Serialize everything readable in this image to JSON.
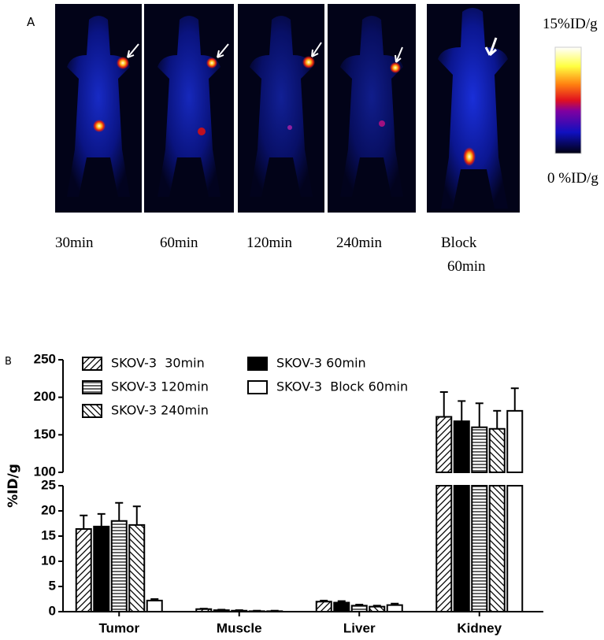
{
  "panel_a": {
    "panel_label": "A",
    "time_labels": [
      "30min",
      "60min",
      "120min",
      "240min"
    ],
    "block_label": [
      "Block",
      "60min"
    ],
    "colorbar": {
      "max_label": "15%ID/g",
      "min_label": "0 %ID/g"
    }
  },
  "chart_data": {
    "type": "bar",
    "panel_label": "B",
    "ylabel": "%ID/g",
    "categories": [
      "Tumor",
      "Muscle",
      "Liver",
      "Kidney"
    ],
    "series": [
      {
        "name": "SKOV-3  30min",
        "pattern": "diagonal-up",
        "color": "#000000",
        "values": [
          16.4,
          0.5,
          2.0,
          174
        ],
        "errors": [
          2.7,
          0.1,
          0.2,
          33
        ]
      },
      {
        "name": "SKOV-3 60min",
        "pattern": "solid",
        "color": "#000000",
        "values": [
          16.9,
          0.3,
          1.8,
          168
        ],
        "errors": [
          2.5,
          0.1,
          0.3,
          27
        ]
      },
      {
        "name": "SKOV-3 120min",
        "pattern": "horizontal",
        "color": "#000000",
        "values": [
          18.0,
          0.2,
          1.2,
          160
        ],
        "errors": [
          3.6,
          0.1,
          0.2,
          32
        ]
      },
      {
        "name": "SKOV-3 240min",
        "pattern": "diagonal-down",
        "color": "#000000",
        "values": [
          17.2,
          0.1,
          1.0,
          158
        ],
        "errors": [
          3.7,
          0.1,
          0.2,
          24
        ]
      },
      {
        "name": "SKOV-3  Block 60min",
        "pattern": "open",
        "color": "#000000",
        "values": [
          2.2,
          0.1,
          1.3,
          182
        ],
        "errors": [
          0.3,
          0.1,
          0.3,
          30
        ]
      }
    ],
    "ylim": [
      0,
      250
    ],
    "ybreak": [
      25,
      100
    ],
    "yticks": [
      0,
      5,
      10,
      15,
      20,
      25,
      100,
      150,
      200,
      250
    ],
    "legend": "upper left"
  }
}
